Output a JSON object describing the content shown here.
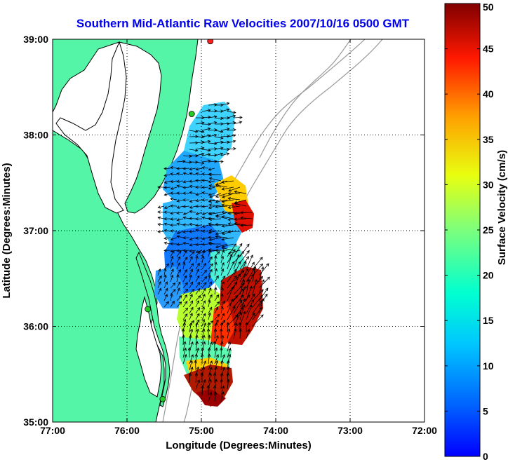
{
  "chart_data": {
    "type": "heatmap",
    "title": "Southern Mid-Atlantic Raw Velocities 2007/10/16 0500 GMT",
    "xlabel": "Longitude (Degrees:Minutes)",
    "ylabel": "Latitude (Degrees:Minutes)",
    "colorbar_label": "Surface Velocity (cm/s)",
    "x_ticks": [
      {
        "value": -77,
        "label": "77:00"
      },
      {
        "value": -76,
        "label": "76:00"
      },
      {
        "value": -75,
        "label": "75:00"
      },
      {
        "value": -74,
        "label": "74:00"
      },
      {
        "value": -73,
        "label": "73:00"
      },
      {
        "value": -72,
        "label": "72:00"
      }
    ],
    "y_ticks": [
      {
        "value": 35,
        "label": "35:00"
      },
      {
        "value": 36,
        "label": "36:00"
      },
      {
        "value": 37,
        "label": "37:00"
      },
      {
        "value": 38,
        "label": "38:00"
      },
      {
        "value": 39,
        "label": "39:00"
      }
    ],
    "colorbar_ticks": [
      {
        "value": 0,
        "label": "0"
      },
      {
        "value": 5,
        "label": "5"
      },
      {
        "value": 10,
        "label": "10"
      },
      {
        "value": 15,
        "label": "15"
      },
      {
        "value": 20,
        "label": "20"
      },
      {
        "value": 25,
        "label": "25"
      },
      {
        "value": 30,
        "label": "30"
      },
      {
        "value": 35,
        "label": "35"
      },
      {
        "value": 40,
        "label": "40"
      },
      {
        "value": 45,
        "label": "45"
      },
      {
        "value": 50,
        "label": "50"
      }
    ],
    "xlim": [
      -77,
      -72
    ],
    "ylim": [
      35,
      39
    ],
    "clim": [
      0,
      50
    ],
    "grid": true,
    "colormap": "jet",
    "land_color": "#55f5a8",
    "coastline_color": "#000000",
    "bathymetry_color": "#999999",
    "arrow_color": "#000000",
    "sites": [
      {
        "lon": -74.88,
        "lat": 38.98,
        "color": "#ff2020"
      },
      {
        "lon": -75.13,
        "lat": 38.22,
        "color": "#22cc22"
      },
      {
        "lon": -75.72,
        "lat": 36.18,
        "color": "#22cc22"
      },
      {
        "lon": -75.52,
        "lat": 35.24,
        "color": "#22cc22"
      }
    ],
    "velocity_regions": [
      {
        "lon": -74.94,
        "lat": 38.02,
        "speed": 13
      },
      {
        "lon": -75.3,
        "lat": 37.62,
        "speed": 10
      },
      {
        "lon": -74.9,
        "lat": 37.48,
        "speed": 12
      },
      {
        "lon": -74.62,
        "lat": 37.22,
        "speed": 24
      },
      {
        "lon": -74.55,
        "lat": 37.02,
        "speed": 45
      },
      {
        "lon": -75.0,
        "lat": 36.9,
        "speed": 6
      },
      {
        "lon": -75.3,
        "lat": 36.55,
        "speed": 8
      },
      {
        "lon": -74.7,
        "lat": 36.6,
        "speed": 14
      },
      {
        "lon": -75.15,
        "lat": 36.15,
        "speed": 22
      },
      {
        "lon": -74.55,
        "lat": 36.2,
        "speed": 44
      },
      {
        "lon": -75.1,
        "lat": 35.75,
        "speed": 17
      },
      {
        "lon": -74.85,
        "lat": 35.55,
        "speed": 26
      },
      {
        "lon": -75.0,
        "lat": 35.35,
        "speed": 48
      }
    ]
  }
}
